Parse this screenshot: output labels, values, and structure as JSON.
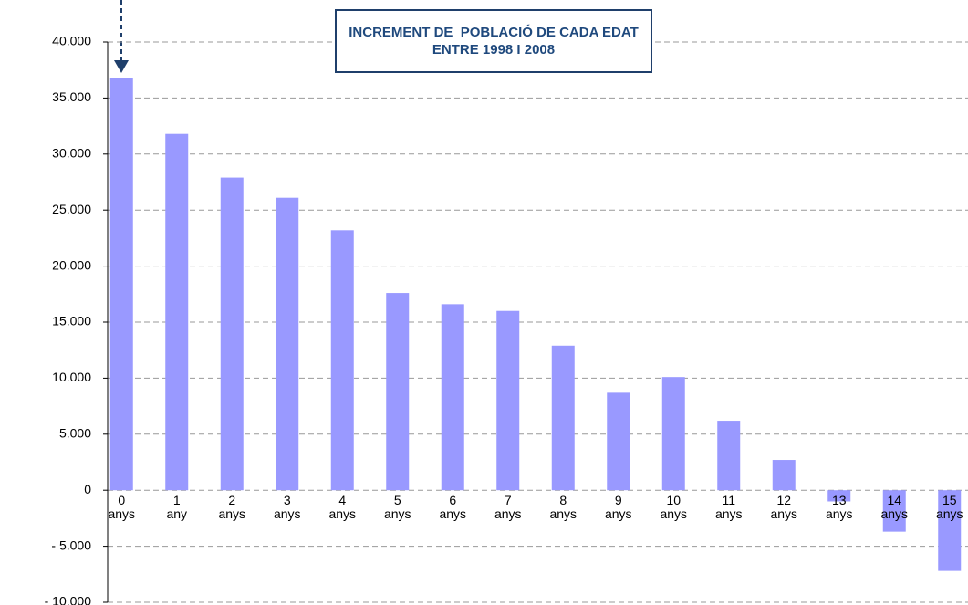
{
  "chart_data": {
    "type": "bar",
    "title": [
      "INCREMENT DE  POBLACIÓ DE CADA EDAT",
      "ENTRE 1998 I 2008"
    ],
    "categories": [
      "0 anys",
      "1 any",
      "2 anys",
      "3 anys",
      "4 anys",
      "5 anys",
      "6 anys",
      "7 anys",
      "8 anys",
      "9 anys",
      "10 anys",
      "11 anys",
      "12 anys",
      "13 anys",
      "14 anys",
      "15 anys"
    ],
    "values": [
      36800,
      31800,
      27900,
      26100,
      23200,
      17600,
      16600,
      16000,
      12900,
      8700,
      10100,
      6200,
      2700,
      -1000,
      -3700,
      -7200
    ],
    "color": "#9999ff",
    "ylim": [
      -10000,
      40000
    ],
    "yticks": [
      {
        "value": -10000,
        "label": "- 10.000"
      },
      {
        "value": -5000,
        "label": "- 5.000"
      },
      0,
      {
        "value": 5000,
        "label": "5.000"
      },
      {
        "value": 10000,
        "label": "10.000"
      },
      {
        "value": 15000,
        "label": "15.000"
      },
      {
        "value": 20000,
        "label": "20.000"
      },
      {
        "value": 25000,
        "label": "25.000"
      },
      {
        "value": 30000,
        "label": "30.000"
      },
      {
        "value": 35000,
        "label": "35.000"
      },
      {
        "value": 40000,
        "label": "40.000"
      }
    ],
    "grid": true
  }
}
